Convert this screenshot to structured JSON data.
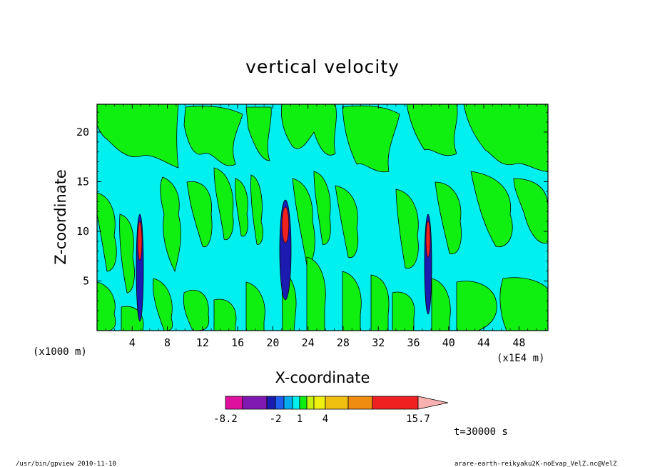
{
  "chart_data": {
    "type": "heatmap",
    "title": "vertical velocity",
    "xlabel": "X-coordinate",
    "ylabel": "Z-coordinate",
    "x_unit_label": "(x1E4 m)",
    "y_unit_label": "(x1000 m)",
    "xlim": [
      0,
      51.3
    ],
    "ylim": [
      0,
      22.8
    ],
    "x_ticks": [
      4,
      8,
      12,
      16,
      20,
      24,
      28,
      32,
      36,
      40,
      44,
      48
    ],
    "y_ticks": [
      5,
      10,
      15,
      20
    ],
    "colorbar": {
      "ticks": [
        "-8.2",
        "-2",
        "1",
        "4",
        "15.7"
      ],
      "colors": [
        "#e0109e",
        "#8019b2",
        "#1b1bb0",
        "#1e5ff0",
        "#00aef0",
        "#00f0f0",
        "#10f010",
        "#c8f010",
        "#f0f010",
        "#f0c010",
        "#f08c10",
        "#f02020",
        "#f28080",
        "#f8b0b0"
      ]
    },
    "fields": {
      "background": "#00f0f0",
      "updraft_weak": "#10f010"
    },
    "time_label": "t=30000 s"
  },
  "footer": {
    "left": "/usr/bin/gpview   2010-11-10",
    "right": "arare-earth-reikyaku2K-noEvap_VelZ.nc@VelZ"
  }
}
